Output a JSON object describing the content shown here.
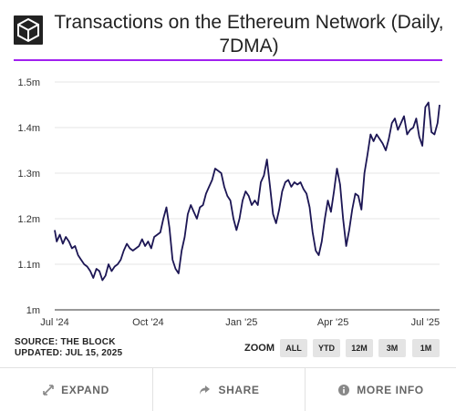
{
  "chart_data": {
    "type": "line",
    "title": "Transactions on the Ethereum Network (Daily, 7DMA)",
    "x_ticks": [
      "Jul '24",
      "Oct '24",
      "Jan '25",
      "Apr '25",
      "Jul '25"
    ],
    "y_ticks": [
      "1m",
      "1.1m",
      "1.2m",
      "1.3m",
      "1.4m",
      "1.5m"
    ],
    "ylim": [
      1000000,
      1500000
    ],
    "xlim": [
      "2024-07-01",
      "2025-07-15"
    ],
    "grid": true,
    "line_color": "#1c1654",
    "series": [
      {
        "x": [
          "2024-07-01",
          "2024-07-03",
          "2024-07-06",
          "2024-07-09",
          "2024-07-12",
          "2024-07-15",
          "2024-07-18",
          "2024-07-21",
          "2024-07-24",
          "2024-07-27",
          "2024-07-30",
          "2024-08-02",
          "2024-08-05",
          "2024-08-08",
          "2024-08-11",
          "2024-08-14",
          "2024-08-17",
          "2024-08-20",
          "2024-08-23",
          "2024-08-26",
          "2024-08-29",
          "2024-09-01",
          "2024-09-04",
          "2024-09-07",
          "2024-09-10",
          "2024-09-13",
          "2024-09-16",
          "2024-09-19",
          "2024-09-22",
          "2024-09-25",
          "2024-09-28",
          "2024-10-01",
          "2024-10-04",
          "2024-10-07",
          "2024-10-10",
          "2024-10-13",
          "2024-10-16",
          "2024-10-19",
          "2024-10-22",
          "2024-10-25",
          "2024-10-28",
          "2024-10-31",
          "2024-11-03",
          "2024-11-06",
          "2024-11-09",
          "2024-11-12",
          "2024-11-15",
          "2024-11-18",
          "2024-11-21",
          "2024-11-24",
          "2024-11-27",
          "2024-11-30",
          "2024-12-03",
          "2024-12-06",
          "2024-12-09",
          "2024-12-12",
          "2024-12-15",
          "2024-12-18",
          "2024-12-21",
          "2024-12-24",
          "2024-12-27",
          "2024-12-30",
          "2025-01-02",
          "2025-01-05",
          "2025-01-08",
          "2025-01-11",
          "2025-01-14",
          "2025-01-17",
          "2025-01-20",
          "2025-01-23",
          "2025-01-26",
          "2025-01-29",
          "2025-02-01",
          "2025-02-04",
          "2025-02-07",
          "2025-02-10",
          "2025-02-13",
          "2025-02-16",
          "2025-02-19",
          "2025-02-22",
          "2025-02-25",
          "2025-02-28",
          "2025-03-03",
          "2025-03-06",
          "2025-03-09",
          "2025-03-12",
          "2025-03-15",
          "2025-03-18",
          "2025-03-21",
          "2025-03-24",
          "2025-03-27",
          "2025-03-30",
          "2025-04-02",
          "2025-04-05",
          "2025-04-08",
          "2025-04-11",
          "2025-04-14",
          "2025-04-17",
          "2025-04-20",
          "2025-04-23",
          "2025-04-26",
          "2025-04-29",
          "2025-05-02",
          "2025-05-05",
          "2025-05-08",
          "2025-05-11",
          "2025-05-14",
          "2025-05-17",
          "2025-05-20",
          "2025-05-23",
          "2025-05-26",
          "2025-05-29",
          "2025-06-01",
          "2025-06-04",
          "2025-06-07",
          "2025-06-10",
          "2025-06-13",
          "2025-06-16",
          "2025-06-19",
          "2025-06-22",
          "2025-06-25",
          "2025-06-28",
          "2025-07-01",
          "2025-07-04",
          "2025-07-07",
          "2025-07-10",
          "2025-07-13",
          "2025-07-15"
        ],
        "y": [
          1175000,
          1150000,
          1165000,
          1145000,
          1160000,
          1150000,
          1135000,
          1140000,
          1120000,
          1110000,
          1100000,
          1095000,
          1085000,
          1070000,
          1090000,
          1085000,
          1065000,
          1075000,
          1100000,
          1085000,
          1095000,
          1100000,
          1110000,
          1130000,
          1145000,
          1135000,
          1130000,
          1135000,
          1140000,
          1155000,
          1140000,
          1150000,
          1135000,
          1160000,
          1165000,
          1170000,
          1200000,
          1225000,
          1180000,
          1110000,
          1090000,
          1080000,
          1130000,
          1160000,
          1210000,
          1230000,
          1215000,
          1200000,
          1225000,
          1230000,
          1255000,
          1270000,
          1285000,
          1310000,
          1305000,
          1300000,
          1270000,
          1250000,
          1240000,
          1200000,
          1175000,
          1200000,
          1240000,
          1260000,
          1250000,
          1230000,
          1240000,
          1230000,
          1280000,
          1295000,
          1330000,
          1270000,
          1210000,
          1190000,
          1220000,
          1260000,
          1280000,
          1285000,
          1270000,
          1280000,
          1275000,
          1280000,
          1265000,
          1255000,
          1225000,
          1170000,
          1130000,
          1120000,
          1150000,
          1200000,
          1240000,
          1215000,
          1260000,
          1310000,
          1275000,
          1200000,
          1140000,
          1175000,
          1220000,
          1255000,
          1250000,
          1220000,
          1300000,
          1340000,
          1385000,
          1370000,
          1385000,
          1375000,
          1365000,
          1350000,
          1375000,
          1410000,
          1420000,
          1395000,
          1410000,
          1425000,
          1385000,
          1395000,
          1400000,
          1420000,
          1380000,
          1360000,
          1445000,
          1455000,
          1390000,
          1385000,
          1410000,
          1450000
        ]
      }
    ]
  },
  "footer_info": {
    "source": "SOURCE: THE BLOCK",
    "updated": "UPDATED: JUL 15, 2025"
  },
  "zoom": {
    "label": "ZOOM",
    "buttons": [
      "ALL",
      "YTD",
      "12M",
      "3M",
      "1M"
    ]
  },
  "actions": {
    "expand": "EXPAND",
    "share": "SHARE",
    "more_info": "MORE INFO"
  },
  "icons": {
    "logo": "the-block-cube-logo",
    "expand": "expand-arrows-icon",
    "share": "share-arrow-icon",
    "info": "info-circle-icon"
  }
}
